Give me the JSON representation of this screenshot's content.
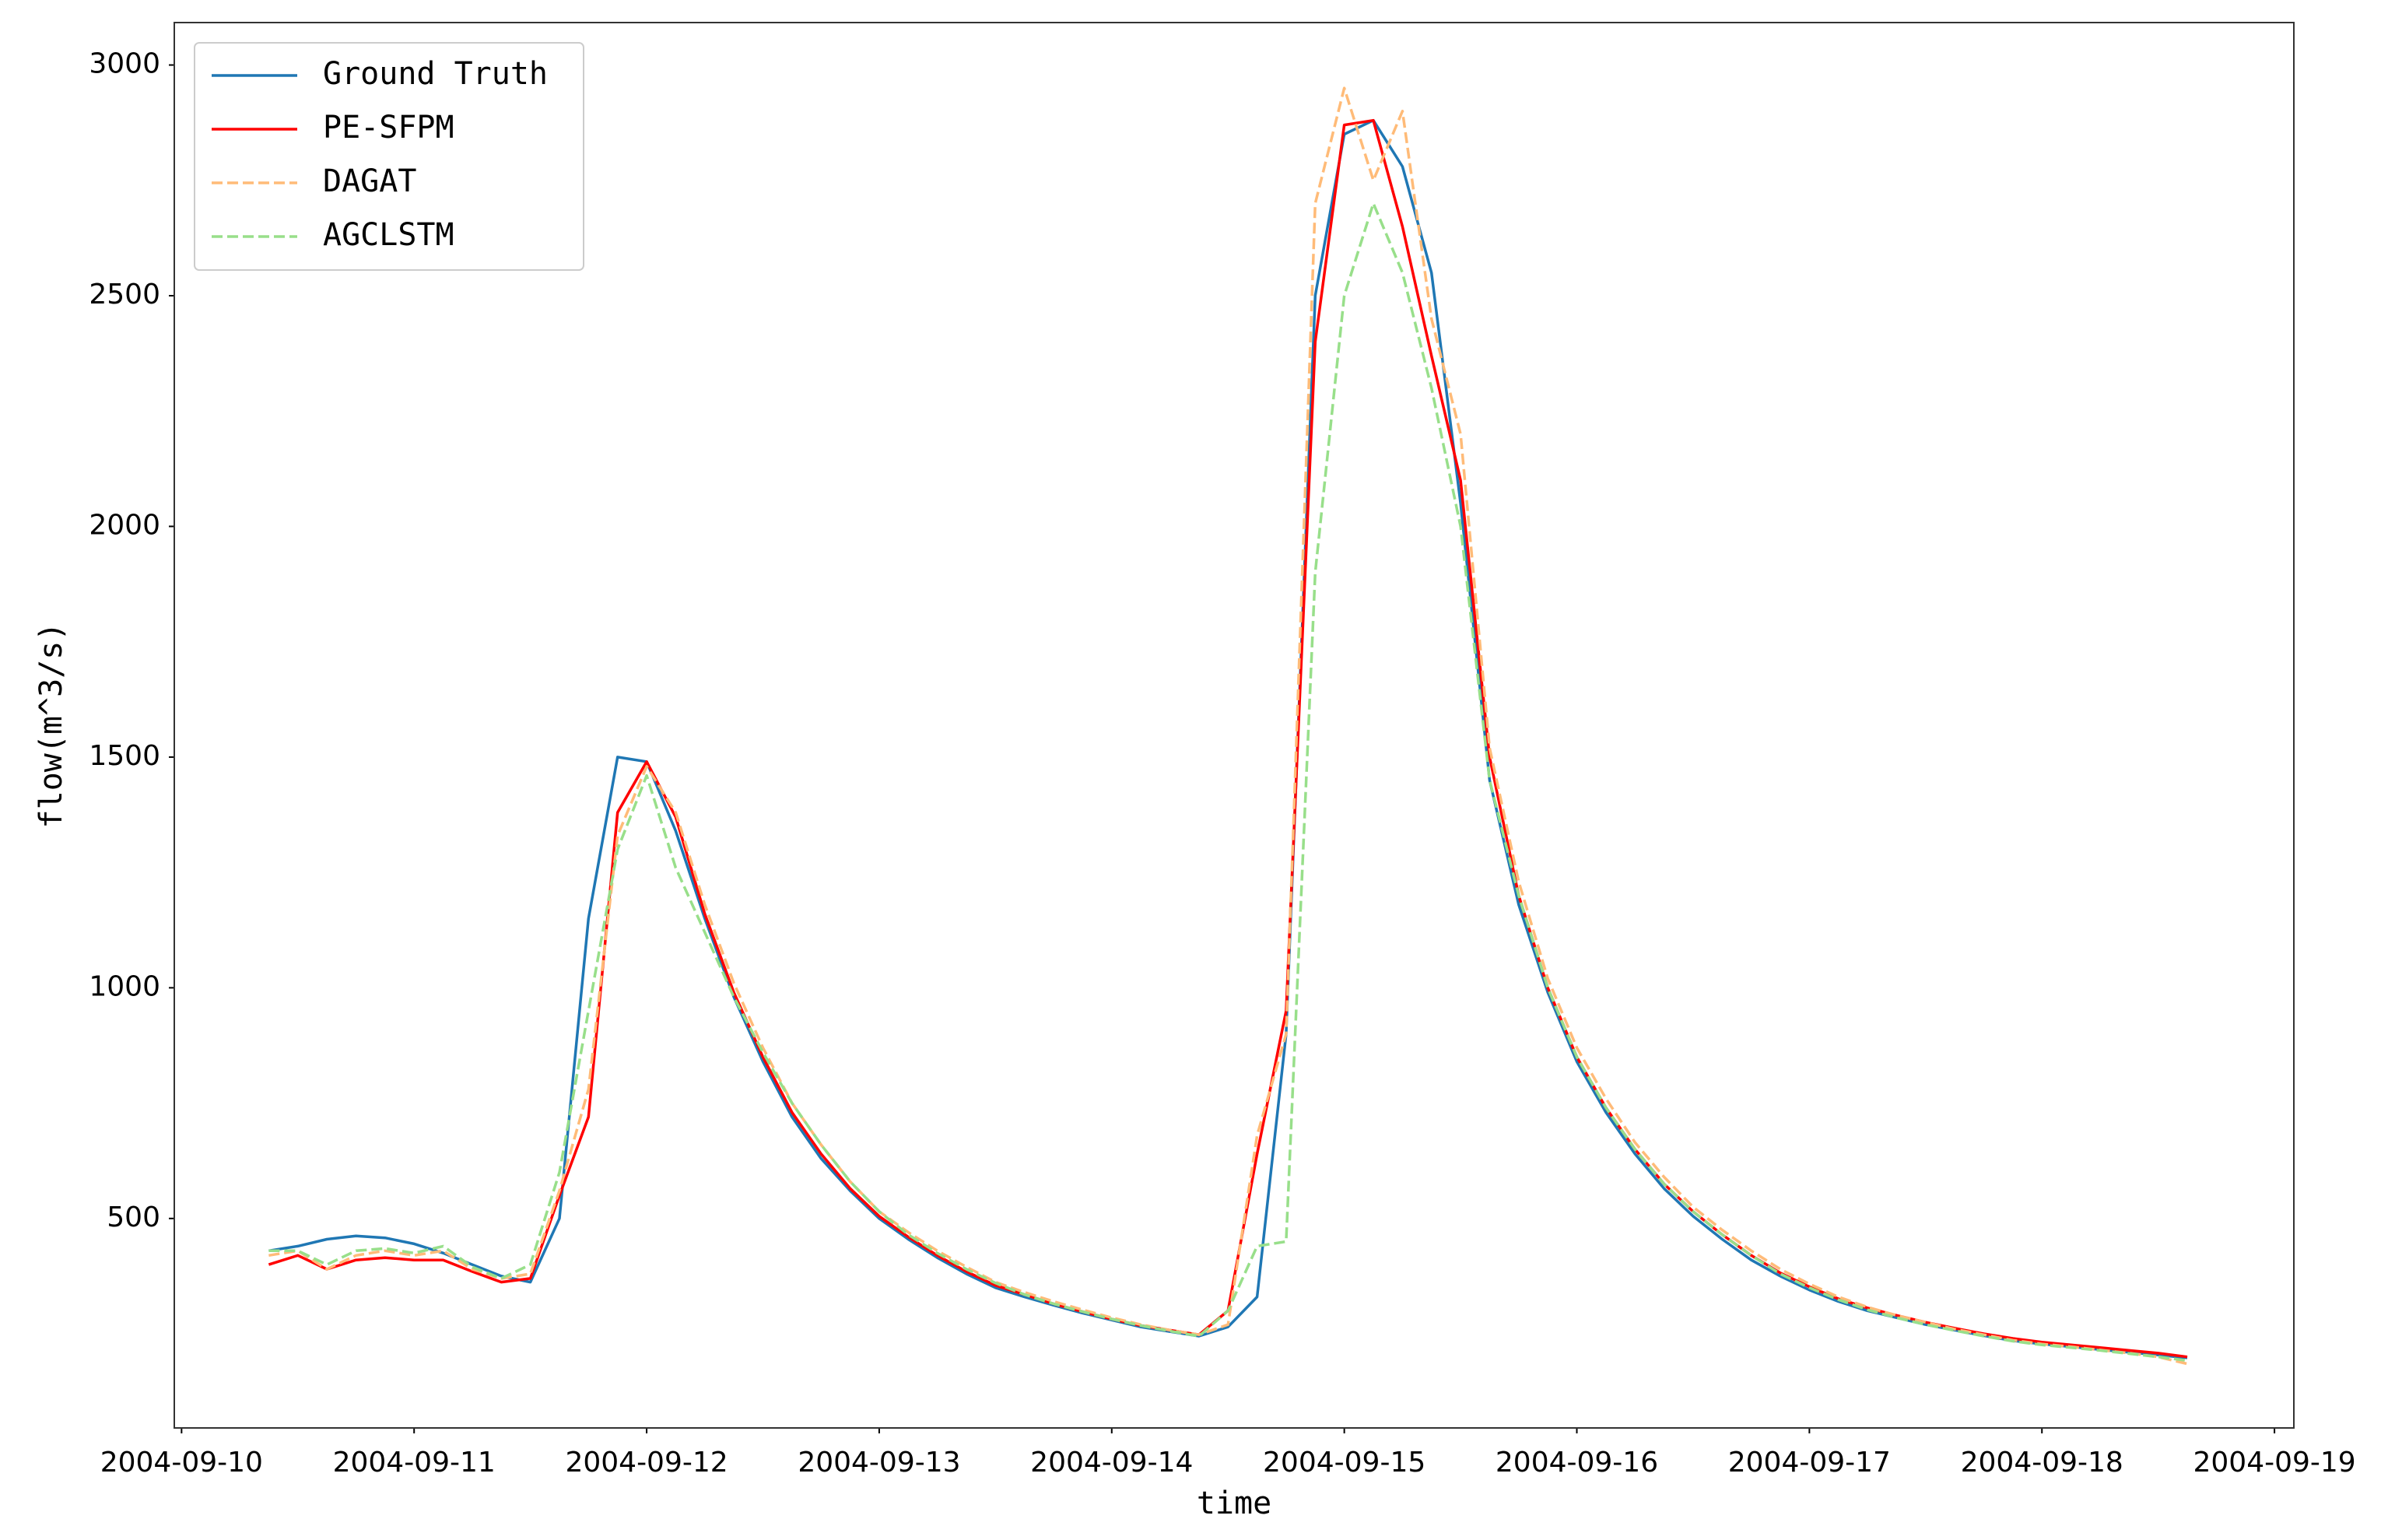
{
  "chart_data": {
    "type": "line",
    "xlabel": "time",
    "ylabel": "flow(m^3/s)",
    "x": [
      "2004-09-10T09:00",
      "2004-09-10T12:00",
      "2004-09-10T15:00",
      "2004-09-10T18:00",
      "2004-09-10T21:00",
      "2004-09-11T00:00",
      "2004-09-11T03:00",
      "2004-09-11T06:00",
      "2004-09-11T09:00",
      "2004-09-11T12:00",
      "2004-09-11T15:00",
      "2004-09-11T18:00",
      "2004-09-11T21:00",
      "2004-09-12T00:00",
      "2004-09-12T03:00",
      "2004-09-12T06:00",
      "2004-09-12T09:00",
      "2004-09-12T12:00",
      "2004-09-12T15:00",
      "2004-09-12T18:00",
      "2004-09-12T21:00",
      "2004-09-13T00:00",
      "2004-09-13T03:00",
      "2004-09-13T06:00",
      "2004-09-13T09:00",
      "2004-09-13T12:00",
      "2004-09-13T15:00",
      "2004-09-13T18:00",
      "2004-09-13T21:00",
      "2004-09-14T00:00",
      "2004-09-14T03:00",
      "2004-09-14T06:00",
      "2004-09-14T09:00",
      "2004-09-14T12:00",
      "2004-09-14T15:00",
      "2004-09-14T18:00",
      "2004-09-14T21:00",
      "2004-09-15T00:00",
      "2004-09-15T03:00",
      "2004-09-15T06:00",
      "2004-09-15T09:00",
      "2004-09-15T12:00",
      "2004-09-15T15:00",
      "2004-09-15T18:00",
      "2004-09-15T21:00",
      "2004-09-16T00:00",
      "2004-09-16T03:00",
      "2004-09-16T06:00",
      "2004-09-16T09:00",
      "2004-09-16T12:00",
      "2004-09-16T15:00",
      "2004-09-16T18:00",
      "2004-09-16T21:00",
      "2004-09-17T00:00",
      "2004-09-17T03:00",
      "2004-09-17T06:00",
      "2004-09-17T09:00",
      "2004-09-17T12:00",
      "2004-09-17T15:00",
      "2004-09-17T18:00",
      "2004-09-17T21:00",
      "2004-09-18T00:00",
      "2004-09-18T03:00",
      "2004-09-18T06:00",
      "2004-09-18T09:00",
      "2004-09-18T12:00",
      "2004-09-18T15:00"
    ],
    "series": [
      {
        "name": "Ground Truth",
        "color": "#1f77b4",
        "dashed": false,
        "values": [
          430,
          440,
          455,
          462,
          458,
          445,
          425,
          400,
          375,
          362,
          500,
          1150,
          1500,
          1490,
          1340,
          1150,
          980,
          840,
          720,
          630,
          560,
          500,
          455,
          415,
          380,
          350,
          330,
          312,
          295,
          280,
          265,
          255,
          245,
          265,
          330,
          900,
          2500,
          2850,
          2880,
          2780,
          2550,
          2050,
          1450,
          1180,
          990,
          840,
          730,
          640,
          565,
          505,
          455,
          410,
          375,
          345,
          320,
          300,
          285,
          270,
          258,
          246,
          235,
          228,
          222,
          216,
          210,
          204,
          198
        ]
      },
      {
        "name": "PE-SFPM",
        "color": "#ff0000",
        "dashed": false,
        "values": [
          400,
          420,
          390,
          410,
          415,
          410,
          410,
          385,
          362,
          370,
          550,
          720,
          1380,
          1490,
          1370,
          1160,
          990,
          850,
          730,
          640,
          565,
          505,
          460,
          420,
          385,
          355,
          335,
          315,
          298,
          282,
          268,
          258,
          248,
          300,
          640,
          950,
          2400,
          2870,
          2880,
          2650,
          2370,
          2100,
          1500,
          1200,
          1000,
          850,
          740,
          650,
          575,
          515,
          465,
          420,
          382,
          352,
          326,
          306,
          290,
          275,
          262,
          250,
          240,
          232,
          226,
          220,
          214,
          208,
          200
        ]
      },
      {
        "name": "DAGAT",
        "color": "#ffbb78",
        "dashed": true,
        "values": [
          420,
          430,
          390,
          420,
          430,
          420,
          430,
          390,
          370,
          380,
          560,
          780,
          1330,
          1480,
          1380,
          1180,
          1010,
          870,
          750,
          660,
          580,
          515,
          470,
          430,
          395,
          362,
          340,
          320,
          302,
          285,
          270,
          258,
          248,
          270,
          680,
          900,
          2700,
          2950,
          2750,
          2900,
          2450,
          2200,
          1520,
          1230,
          1020,
          870,
          760,
          665,
          590,
          525,
          475,
          430,
          390,
          358,
          330,
          308,
          290,
          275,
          260,
          248,
          236,
          228,
          222,
          215,
          208,
          200,
          185
        ]
      },
      {
        "name": "AGCLSTM",
        "color": "#98df8a",
        "dashed": true,
        "values": [
          430,
          430,
          400,
          430,
          435,
          425,
          440,
          395,
          370,
          400,
          600,
          950,
          1300,
          1460,
          1260,
          1120,
          980,
          860,
          750,
          660,
          580,
          515,
          465,
          425,
          390,
          360,
          335,
          315,
          298,
          282,
          268,
          256,
          245,
          300,
          440,
          450,
          1900,
          2500,
          2700,
          2550,
          2300,
          2000,
          1450,
          1200,
          1000,
          850,
          740,
          650,
          575,
          515,
          465,
          420,
          380,
          350,
          324,
          302,
          285,
          270,
          257,
          245,
          234,
          226,
          220,
          214,
          207,
          200,
          192
        ]
      }
    ],
    "xlim": [
      "2004-09-09T23:15",
      "2004-09-19T02:00"
    ],
    "xticks": [
      "2004-09-10",
      "2004-09-11",
      "2004-09-12",
      "2004-09-13",
      "2004-09-14",
      "2004-09-15",
      "2004-09-16",
      "2004-09-17",
      "2004-09-18",
      "2004-09-19"
    ],
    "ylim": [
      46,
      3092
    ],
    "yticks": [
      500,
      1000,
      1500,
      2000,
      2500,
      3000
    ],
    "grid": false,
    "legend": "upper left"
  }
}
